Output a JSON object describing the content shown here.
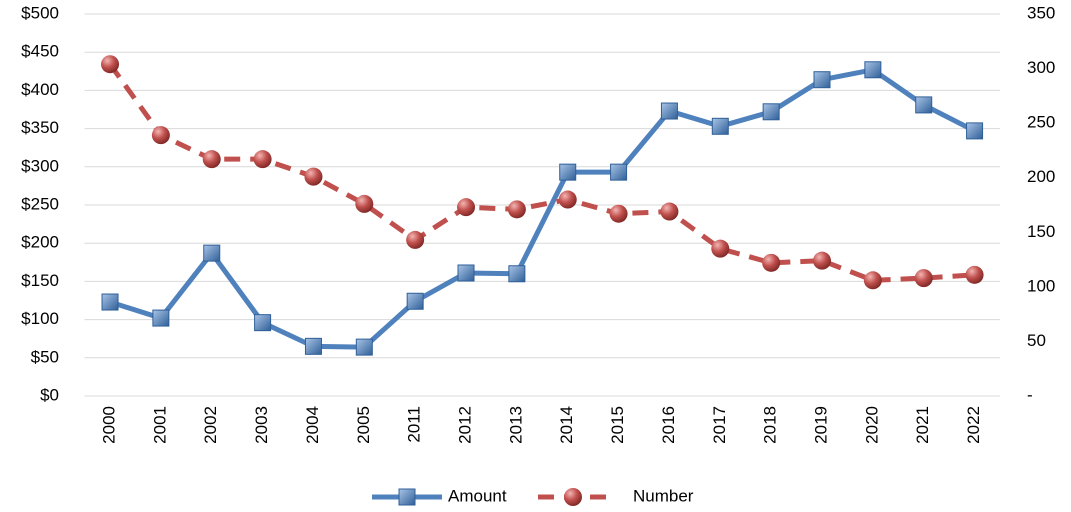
{
  "chart_data": {
    "type": "line",
    "categories": [
      "2000",
      "2001",
      "2002",
      "2003",
      "2004",
      "2005",
      "2011",
      "2012",
      "2013",
      "2014",
      "2015",
      "2016",
      "2017",
      "2018",
      "2019",
      "2020",
      "2021",
      "2022"
    ],
    "series": [
      {
        "name": "Amount",
        "color": "#4f81bd",
        "marker": "square",
        "dash": false,
        "values": [
          123,
          102,
          187,
          96,
          65,
          64,
          124,
          161,
          160,
          293,
          293,
          373,
          353,
          372,
          414,
          427,
          381,
          347
        ]
      },
      {
        "name": "Number",
        "color": "#c0504d",
        "marker": "circle",
        "dash": true,
        "axis": "y2",
        "values": [
          304,
          239,
          217,
          217,
          201,
          176,
          143,
          173,
          171,
          180,
          167,
          169,
          135,
          122,
          124,
          106,
          108,
          111
        ]
      }
    ],
    "ylim": [
      0,
      500
    ],
    "yticks": [
      {
        "value": 0,
        "label": "$0"
      },
      {
        "value": 50,
        "label": "$50"
      },
      {
        "value": 100,
        "label": "$100"
      },
      {
        "value": 150,
        "label": "$150"
      },
      {
        "value": 200,
        "label": "$200"
      },
      {
        "value": 250,
        "label": "$250"
      },
      {
        "value": 300,
        "label": "$300"
      },
      {
        "value": 350,
        "label": "$350"
      },
      {
        "value": 400,
        "label": "$400"
      },
      {
        "value": 450,
        "label": "$450"
      },
      {
        "value": 500,
        "label": "$500"
      }
    ],
    "y2lim": [
      0,
      350
    ],
    "y2ticks": [
      {
        "value": 0,
        "label": "-"
      },
      50,
      100,
      150,
      200,
      250,
      300,
      350
    ],
    "grid": true,
    "legend": "bottom"
  }
}
